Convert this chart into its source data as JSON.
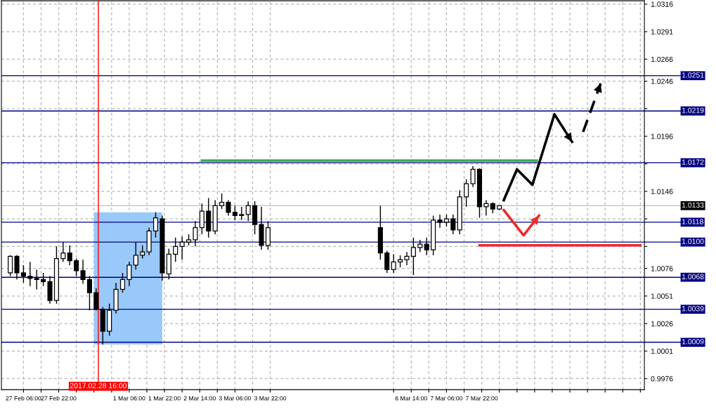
{
  "chart_data": {
    "type": "candlestick",
    "x": [
      "2017-02-27T00:00",
      "2017-02-27T03:00",
      "2017-02-27T06:00",
      "2017-02-27T09:00",
      "2017-02-27T12:00",
      "2017-02-27T15:00",
      "2017-02-27T18:00",
      "2017-02-27T21:00",
      "2017-02-28T00:00",
      "2017-02-28T03:00",
      "2017-02-28T06:00",
      "2017-02-28T09:00",
      "2017-02-28T12:00",
      "2017-02-28T15:00",
      "2017-02-28T18:00",
      "2017-02-28T21:00",
      "2017-03-01T00:00",
      "2017-03-01T03:00",
      "2017-03-01T06:00",
      "2017-03-01T09:00",
      "2017-03-01T12:00",
      "2017-03-01T15:00",
      "2017-03-01T18:00",
      "2017-03-01T21:00",
      "2017-03-02T00:00",
      "2017-03-02T03:00",
      "2017-03-02T06:00",
      "2017-03-02T09:00",
      "2017-03-02T12:00",
      "2017-03-02T15:00",
      "2017-03-02T18:00",
      "2017-03-02T21:00",
      "2017-03-03T00:00",
      "2017-03-03T03:00",
      "2017-03-03T06:00",
      "2017-03-03T09:00",
      "2017-03-03T12:00",
      "2017-03-03T15:00",
      "2017-03-03T18:00",
      "2017-03-03T21:00",
      "2017-03-06T00:00",
      "2017-03-06T03:00",
      "2017-03-06T06:00",
      "2017-03-06T09:00",
      "2017-03-06T12:00",
      "2017-03-06T15:00",
      "2017-03-06T18:00",
      "2017-03-06T21:00",
      "2017-03-07T00:00",
      "2017-03-07T03:00",
      "2017-03-07T06:00",
      "2017-03-07T09:00",
      "2017-03-07T12:00",
      "2017-03-07T15:00",
      "2017-03-07T18:00",
      "2017-03-07T21:00",
      "2017-03-08T00:00",
      "2017-03-08T03:00",
      "2017-03-08T06:00"
    ],
    "ohlc": [
      [
        1.0072,
        1.0088,
        1.0069,
        1.0087
      ],
      [
        1.0087,
        1.0088,
        1.0066,
        1.0072
      ],
      [
        1.0072,
        1.0079,
        1.0063,
        1.0069
      ],
      [
        1.0069,
        1.0082,
        1.006,
        1.0067
      ],
      [
        1.0067,
        1.0075,
        1.0057,
        1.0066
      ],
      [
        1.0066,
        1.0072,
        1.006,
        1.0064
      ],
      [
        1.0064,
        1.0069,
        1.0044,
        1.0047
      ],
      [
        1.0047,
        1.0096,
        1.0044,
        1.0085
      ],
      [
        1.0085,
        1.01,
        1.0082,
        1.009
      ],
      [
        1.009,
        1.0097,
        1.0079,
        1.0083
      ],
      [
        1.0083,
        1.0085,
        1.0069,
        1.0074
      ],
      [
        1.0074,
        1.0084,
        1.0062,
        1.0066
      ],
      [
        1.0066,
        1.0069,
        1.0038,
        1.0054
      ],
      [
        1.0054,
        1.0058,
        1.0038,
        1.0039
      ],
      [
        1.0039,
        1.0041,
        1.0007,
        1.0019
      ],
      [
        1.0019,
        1.0044,
        1.0015,
        1.0038
      ],
      [
        1.0038,
        1.0063,
        1.0035,
        1.0057
      ],
      [
        1.0057,
        1.0072,
        1.0054,
        1.0066
      ],
      [
        1.0066,
        1.0082,
        1.006,
        1.0079
      ],
      [
        1.0079,
        1.01,
        1.0075,
        1.0088
      ],
      [
        1.0088,
        1.0097,
        1.0085,
        1.0091
      ],
      [
        1.0091,
        1.0113,
        1.0088,
        1.011
      ],
      [
        1.011,
        1.0127,
        1.0104,
        1.0122
      ],
      [
        1.0121,
        1.0124,
        1.0065,
        1.0072
      ],
      [
        1.0071,
        1.0094,
        1.0066,
        1.0089
      ],
      [
        1.0089,
        1.0104,
        1.0082,
        1.0096
      ],
      [
        1.0096,
        1.0105,
        1.0084,
        1.01
      ],
      [
        1.01,
        1.0107,
        1.0097,
        1.0102
      ],
      [
        1.0102,
        1.0119,
        1.0096,
        1.0113
      ],
      [
        1.0113,
        1.0135,
        1.0107,
        1.0128
      ],
      [
        1.0128,
        1.014,
        1.0104,
        1.011
      ],
      [
        1.011,
        1.0138,
        1.0107,
        1.0133
      ],
      [
        1.0133,
        1.0144,
        1.013,
        1.0136
      ],
      [
        1.0136,
        1.0138,
        1.0124,
        1.0127
      ],
      [
        1.0127,
        1.0133,
        1.012,
        1.0124
      ],
      [
        1.0124,
        1.0132,
        1.012,
        1.0125
      ],
      [
        1.0125,
        1.0137,
        1.0119,
        1.0133
      ],
      [
        1.0133,
        1.0137,
        1.0107,
        1.0116
      ],
      [
        1.0116,
        1.0132,
        1.0093,
        1.0097
      ],
      [
        1.0097,
        1.0119,
        1.0093,
        1.0113
      ],
      [
        1.0113,
        1.0133,
        1.0084,
        1.009
      ],
      [
        1.009,
        1.0092,
        1.0072,
        1.0075
      ],
      [
        1.0075,
        1.0089,
        1.0072,
        1.0082
      ],
      [
        1.0082,
        1.0088,
        1.0077,
        1.0084
      ],
      [
        1.0084,
        1.0091,
        1.0079,
        1.0087
      ],
      [
        1.0087,
        1.0104,
        1.007,
        1.0095
      ],
      [
        1.0095,
        1.0102,
        1.0091,
        1.0098
      ],
      [
        1.0098,
        1.0104,
        1.0088,
        1.0093
      ],
      [
        1.0093,
        1.0124,
        1.0088,
        1.012
      ],
      [
        1.012,
        1.0125,
        1.0113,
        1.0118
      ],
      [
        1.0118,
        1.0125,
        1.0114,
        1.0121
      ],
      [
        1.0121,
        1.0125,
        1.0107,
        1.0111
      ],
      [
        1.0111,
        1.0147,
        1.0107,
        1.0141
      ],
      [
        1.0141,
        1.0157,
        1.0132,
        1.0153
      ],
      [
        1.0153,
        1.0169,
        1.015,
        1.0166
      ],
      [
        1.0166,
        1.0167,
        1.0122,
        1.0132
      ],
      [
        1.0132,
        1.0138,
        1.0124,
        1.0135
      ],
      [
        1.0135,
        1.0136,
        1.0126,
        1.013
      ],
      [
        1.013,
        1.0133,
        1.0129,
        1.0133
      ]
    ],
    "series": [
      {
        "type": "line",
        "color": "#33b04a",
        "x": [
          "2017-03-02T15:00",
          "2017-03-08T23:00"
        ],
        "values": [
          1.0174,
          1.0174
        ]
      },
      {
        "type": "line",
        "color": "#ee2a2a",
        "x": [
          "2017-03-07T21:00",
          "2017-03-10T22:00"
        ],
        "values": [
          1.0097,
          1.0097
        ]
      },
      {
        "type": "line",
        "color": "#000000",
        "x": [
          "2017-03-08T08:00",
          "2017-03-08T14:00",
          "2017-03-08T21:00",
          "2017-03-09T07:00",
          "2017-03-09T15:00"
        ],
        "values": [
          1.0138,
          1.0166,
          1.0152,
          1.0216,
          1.0191
        ]
      },
      {
        "type": "line",
        "color": "#000000",
        "line_style": "dashed",
        "x": [
          "2017-03-09T20:00",
          "2017-03-10T00:00",
          "2017-03-10T04:00"
        ],
        "values": [
          1.02,
          1.0222,
          1.0244
        ]
      },
      {
        "type": "line",
        "color": "#ee2a2a",
        "x": [
          "2017-03-08T08:00",
          "2017-03-08T17:00",
          "2017-03-09T00:00"
        ],
        "values": [
          1.0129,
          1.0106,
          1.0124
        ]
      }
    ],
    "xlim": [
      "2017-02-26T20:00",
      "2017-03-10T23:50"
    ],
    "ylim": [
      0.9966,
      1.0319
    ],
    "xticks": [
      {
        "value": "2017-02-27T06:00",
        "label": "27 Feb 06:00"
      },
      {
        "value": "2017-02-27T14:00",
        "label": null
      },
      {
        "value": "2017-02-27T22:00",
        "label": "27 Feb 22:00"
      },
      {
        "value": "2017-02-28T06:00",
        "label": null
      },
      {
        "value": "2017-02-28T14:00",
        "label": null
      },
      {
        "value": "2017-02-28T22:00",
        "label": null
      },
      {
        "value": "2017-03-01T06:00",
        "label": "1 Mar 06:00"
      },
      {
        "value": "2017-03-01T14:00",
        "label": null
      },
      {
        "value": "2017-03-01T22:00",
        "label": "1 Mar 22:00"
      },
      {
        "value": "2017-03-02T06:00",
        "label": null
      },
      {
        "value": "2017-03-02T14:00",
        "label": "2 Mar 14:00"
      },
      {
        "value": "2017-03-02T22:00",
        "label": null
      },
      {
        "value": "2017-03-03T06:00",
        "label": "3 Mar 06:00"
      },
      {
        "value": "2017-03-03T14:00",
        "label": null
      },
      {
        "value": "2017-03-03T22:00",
        "label": "3 Mar 22:00"
      },
      {
        "value": "2017-03-06T06:00",
        "label": null
      },
      {
        "value": "2017-03-06T14:00",
        "label": "6 Mar 14:00"
      },
      {
        "value": "2017-03-06T22:00",
        "label": null
      },
      {
        "value": "2017-03-07T06:00",
        "label": "7 Mar 06:00"
      },
      {
        "value": "2017-03-07T14:00",
        "label": null
      },
      {
        "value": "2017-03-07T22:00",
        "label": "7 Mar 22:00"
      },
      {
        "value": "2017-03-08T06:00",
        "label": null
      },
      {
        "value": "2017-03-08T14:00",
        "label": null
      },
      {
        "value": "2017-03-08T22:00",
        "label": null
      },
      {
        "value": "2017-03-09T06:00",
        "label": null
      },
      {
        "value": "2017-03-09T14:00",
        "label": null
      },
      {
        "value": "2017-03-09T22:00",
        "label": null
      },
      {
        "value": "2017-03-10T06:00",
        "label": null
      },
      {
        "value": "2017-03-10T14:00",
        "label": null
      },
      {
        "value": "2017-03-10T22:00",
        "label": null
      }
    ],
    "yticks": [
      {
        "value": 1.0316,
        "label": "1.0316"
      },
      {
        "value": 1.0291,
        "label": "1.0291"
      },
      {
        "value": 1.0266,
        "label": "1.0266"
      },
      {
        "value": 1.0246,
        "label": "1.0246"
      },
      {
        "value": 1.0221,
        "label": null
      },
      {
        "value": 1.0196,
        "label": "1.0196"
      },
      {
        "value": 1.0171,
        "label": null
      },
      {
        "value": 1.0146,
        "label": "1.0146"
      },
      {
        "value": 1.0121,
        "label": null
      },
      {
        "value": 1.0096,
        "label": null
      },
      {
        "value": 1.0076,
        "label": "1.0076"
      },
      {
        "value": 1.0051,
        "label": "1.0051"
      },
      {
        "value": 1.0026,
        "label": "1.0026"
      },
      {
        "value": 1.0001,
        "label": "1.0001"
      },
      {
        "value": 0.9976,
        "label": "0.9976"
      }
    ],
    "grid": true,
    "ref_lines": [
      {
        "axis": "y",
        "value": 1.0251,
        "label": "1.0251",
        "color": "#000080"
      },
      {
        "axis": "y",
        "value": 1.0219,
        "label": "1.0219",
        "color": "#000080"
      },
      {
        "axis": "y",
        "value": 1.0172,
        "label": "1.0172",
        "color": "#000080"
      },
      {
        "axis": "y",
        "value": 1.0133,
        "label": "1.0133",
        "color": "#c0c0c0"
      },
      {
        "axis": "y",
        "value": 1.0118,
        "label": "1.0118",
        "color": "#000080"
      },
      {
        "axis": "y",
        "value": 1.01,
        "label": "1.0100",
        "color": "#000080"
      },
      {
        "axis": "y",
        "value": 1.0068,
        "label": "1.0068",
        "color": "#000080"
      },
      {
        "axis": "y",
        "value": 1.0039,
        "label": "1.0039",
        "color": "#000080"
      },
      {
        "axis": "y",
        "value": 1.0009,
        "label": "1.0009",
        "color": "#000080"
      },
      {
        "axis": "x",
        "value": "2017-02-28T16:00",
        "label": "2017.02.28 16:00",
        "color": "#ff0000"
      }
    ],
    "bands": [
      {
        "axis": "x",
        "from": "2017-02-28T14:00",
        "to": "2017-03-01T21:00",
        "color": "#99c9fb"
      }
    ]
  }
}
